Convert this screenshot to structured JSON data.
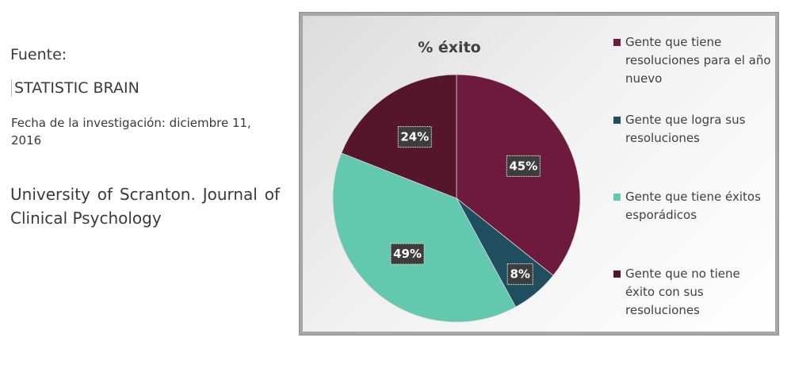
{
  "left_panel": {
    "source_label": "Fuente:",
    "source_name": "STATISTIC BRAIN",
    "investigation_date": "Fecha de la investigación: diciembre 11, 2016",
    "institution": "University of Scranton. Journal of Clinical Psychology"
  },
  "chart_data": {
    "type": "pie",
    "title": "% éxito",
    "legend_position": "right",
    "slices": [
      {
        "label": "Gente que tiene resoluciones para el año nuevo",
        "value": 45,
        "display": "45%",
        "color": "#6e1a3c"
      },
      {
        "label": "Gente que logra sus resoluciones",
        "value": 8,
        "display": "8%",
        "color": "#1f4e5f"
      },
      {
        "label": "Gente que tiene éxitos esporádicos",
        "value": 49,
        "display": "49%",
        "color": "#62c8ae"
      },
      {
        "label": "Gente que no tiene éxito con sus resoluciones",
        "value": 24,
        "display": "24%",
        "color": "#55162c"
      }
    ]
  }
}
